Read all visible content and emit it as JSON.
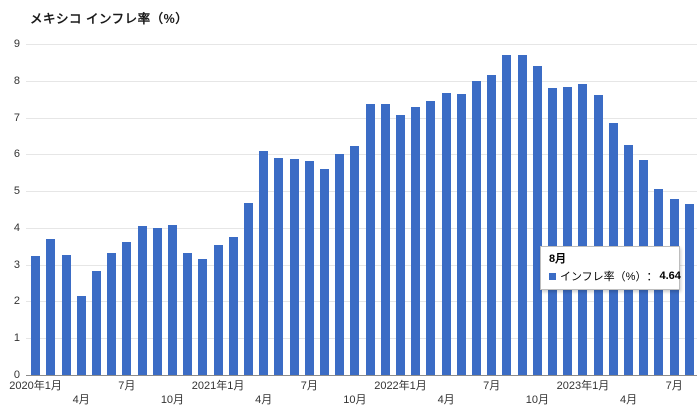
{
  "chart_data": {
    "type": "bar",
    "title": "メキシコ インフレ率（%）",
    "x_start": "2020年1月",
    "x_end": "2023年8月",
    "frequency": "monthly",
    "series": [
      {
        "name": "インフレ率（%）",
        "values": [
          3.24,
          3.7,
          3.25,
          2.15,
          2.84,
          3.33,
          3.62,
          4.05,
          4.01,
          4.09,
          3.33,
          3.15,
          3.54,
          3.76,
          4.67,
          6.08,
          5.89,
          5.88,
          5.81,
          5.59,
          6.0,
          6.24,
          7.37,
          7.36,
          7.07,
          7.28,
          7.45,
          7.68,
          7.65,
          7.99,
          8.15,
          8.7,
          8.7,
          8.41,
          7.8,
          7.82,
          7.91,
          7.62,
          6.85,
          6.25,
          5.84,
          5.06,
          4.79,
          4.64
        ]
      }
    ],
    "ylim": [
      0,
      9
    ],
    "y_ticks": [
      "0",
      "1",
      "2",
      "3",
      "4",
      "5",
      "6",
      "7",
      "8",
      "9"
    ],
    "x_ticks": [
      {
        "index": 0,
        "label": "2020年1月",
        "row": 1
      },
      {
        "index": 3,
        "label": "4月",
        "row": 2
      },
      {
        "index": 6,
        "label": "7月",
        "row": 1
      },
      {
        "index": 9,
        "label": "10月",
        "row": 2
      },
      {
        "index": 12,
        "label": "2021年1月",
        "row": 1
      },
      {
        "index": 15,
        "label": "4月",
        "row": 2
      },
      {
        "index": 18,
        "label": "7月",
        "row": 1
      },
      {
        "index": 21,
        "label": "10月",
        "row": 2
      },
      {
        "index": 24,
        "label": "2022年1月",
        "row": 1
      },
      {
        "index": 27,
        "label": "4月",
        "row": 2
      },
      {
        "index": 30,
        "label": "7月",
        "row": 1
      },
      {
        "index": 33,
        "label": "10月",
        "row": 2
      },
      {
        "index": 36,
        "label": "2023年1月",
        "row": 1
      },
      {
        "index": 39,
        "label": "4月",
        "row": 2
      },
      {
        "index": 42,
        "label": "7月",
        "row": 1
      }
    ],
    "grid": true,
    "legend_position": "none"
  },
  "tooltip": {
    "month_label": "8月",
    "series_label": "インフレ率（%）",
    "separator": "：",
    "value": "4.64"
  },
  "colors": {
    "bar": "#3b6cc5",
    "gridline": "#e6e6e6",
    "axis_line": "#8c8c8c",
    "text": "#333333",
    "tooltip_border": "#bdbdbd",
    "tooltip_bg": "#ffffff"
  }
}
